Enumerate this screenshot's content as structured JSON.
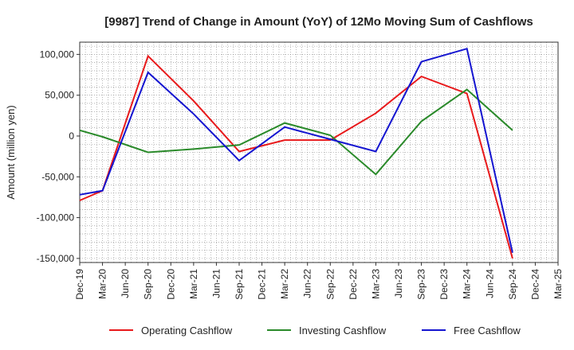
{
  "chart_data": {
    "type": "line",
    "title": "[9987]  Trend of Change in Amount (YoY) of 12Mo Moving Sum of Cashflows",
    "xlabel": "",
    "ylabel": "Amount (million yen)",
    "ylim": [
      -155000,
      115000
    ],
    "yticks": [
      100000,
      50000,
      0,
      -50000,
      -100000,
      -150000
    ],
    "ytick_labels": [
      "100,000",
      "50,000",
      "0",
      "-50,000",
      "-100,000",
      "-150,000"
    ],
    "categories": [
      "Dec-19",
      "Mar-20",
      "Jun-20",
      "Sep-20",
      "Dec-20",
      "Mar-21",
      "Jun-21",
      "Sep-21",
      "Dec-21",
      "Mar-22",
      "Jun-22",
      "Sep-22",
      "Dec-22",
      "Mar-23",
      "Jun-23",
      "Sep-23",
      "Dec-23",
      "Mar-24",
      "Jun-24",
      "Sep-24",
      "Dec-24",
      "Mar-25"
    ],
    "grid": true,
    "legend": "bottom",
    "series": [
      {
        "name": "Operating Cashflow",
        "color": "#e8191b",
        "values": [
          -79000,
          -67000,
          null,
          98000,
          null,
          43000,
          null,
          -19000,
          null,
          -5000,
          null,
          -5000,
          null,
          28000,
          null,
          73000,
          null,
          52000,
          null,
          -150000,
          null,
          null
        ]
      },
      {
        "name": "Investing Cashflow",
        "color": "#2a8a2a",
        "values": [
          7000,
          -1000,
          null,
          -20000,
          null,
          -16000,
          null,
          -11000,
          null,
          16000,
          null,
          1000,
          null,
          -47000,
          null,
          18000,
          null,
          57000,
          null,
          7000,
          null,
          null
        ]
      },
      {
        "name": "Free Cashflow",
        "color": "#1414d0",
        "values": [
          -72000,
          -67000,
          null,
          78000,
          null,
          27000,
          null,
          -30000,
          null,
          11000,
          null,
          -4000,
          null,
          -19000,
          null,
          91000,
          null,
          107000,
          null,
          -143000,
          null,
          null
        ]
      }
    ]
  }
}
